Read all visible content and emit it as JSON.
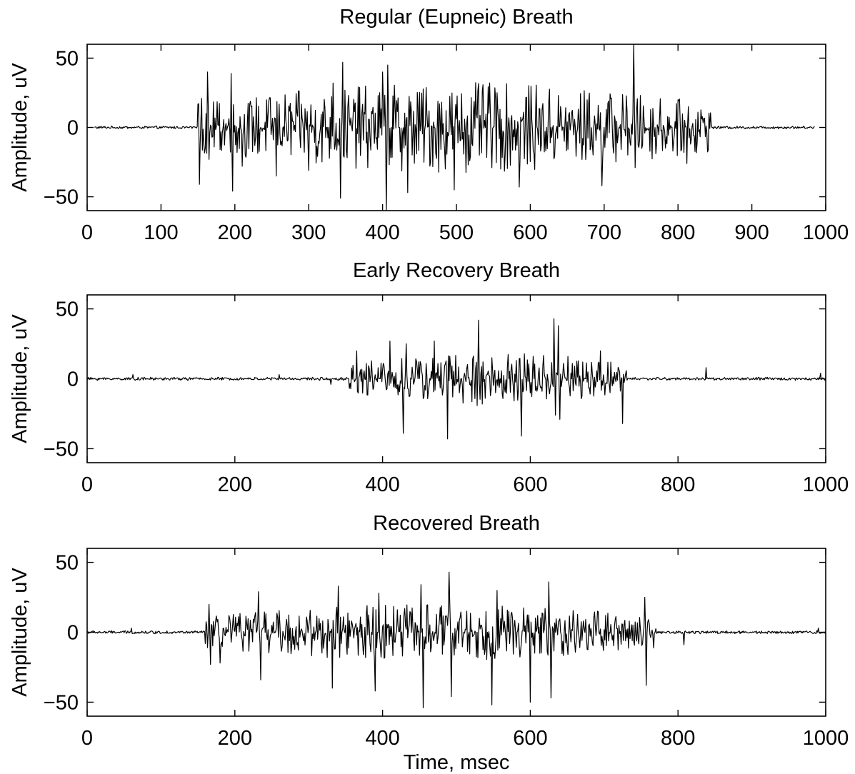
{
  "chart_data": [
    {
      "type": "line",
      "title": "Regular (Eupneic) Breath",
      "xlabel": "",
      "ylabel": "Amplitude, uV",
      "xlim": [
        0,
        1000
      ],
      "ylim": [
        -60,
        60
      ],
      "xticks": [
        0,
        100,
        200,
        300,
        400,
        500,
        600,
        700,
        800,
        900,
        1000
      ],
      "yticks": [
        -50,
        0,
        50
      ],
      "xtick_labels": [
        "0",
        "100",
        "200",
        "300",
        "400",
        "500",
        "600",
        "700",
        "800",
        "900",
        "1000"
      ],
      "ytick_labels": [
        "−50",
        "0",
        "50"
      ],
      "grid": false,
      "series": [
        {
          "x_range": [
            10,
            985
          ],
          "burst": [
            150,
            845
          ],
          "noise_amplitude": 0.8,
          "burst_amplitude": 25,
          "color": "#000000",
          "peaks": [
            {
              "x": 152,
              "y": -41
            },
            {
              "x": 155,
              "y": 21
            },
            {
              "x": 163,
              "y": 40
            },
            {
              "x": 165,
              "y": -23
            },
            {
              "x": 195,
              "y": 39
            },
            {
              "x": 197,
              "y": -46
            },
            {
              "x": 210,
              "y": -28
            },
            {
              "x": 256,
              "y": -35
            },
            {
              "x": 300,
              "y": -31
            },
            {
              "x": 333,
              "y": 32
            },
            {
              "x": 343,
              "y": -51
            },
            {
              "x": 346,
              "y": 47
            },
            {
              "x": 400,
              "y": 40
            },
            {
              "x": 405,
              "y": -60
            },
            {
              "x": 407,
              "y": 45
            },
            {
              "x": 434,
              "y": -47
            },
            {
              "x": 497,
              "y": -45
            },
            {
              "x": 585,
              "y": -43
            },
            {
              "x": 697,
              "y": -42
            },
            {
              "x": 740,
              "y": 60
            },
            {
              "x": 742,
              "y": -29
            },
            {
              "x": 812,
              "y": -26
            },
            {
              "x": 814,
              "y": 15
            }
          ]
        }
      ]
    },
    {
      "type": "line",
      "title": "Early Recovery Breath",
      "xlabel": "",
      "ylabel": "Amplitude, uV",
      "xlim": [
        0,
        1000
      ],
      "ylim": [
        -60,
        60
      ],
      "xticks": [
        0,
        200,
        400,
        600,
        800,
        1000
      ],
      "yticks": [
        -50,
        0,
        50
      ],
      "xtick_labels": [
        "0",
        "200",
        "400",
        "600",
        "800",
        "1000"
      ],
      "ytick_labels": [
        "−50",
        "0",
        "50"
      ],
      "grid": false,
      "series": [
        {
          "x_range": [
            0,
            1000
          ],
          "burst": [
            355,
            730
          ],
          "noise_amplitude": 0.9,
          "burst_amplitude": 15,
          "color": "#000000",
          "peaks": [
            {
              "x": 62,
              "y": 3
            },
            {
              "x": 260,
              "y": 3
            },
            {
              "x": 330,
              "y": -4
            },
            {
              "x": 365,
              "y": 20
            },
            {
              "x": 410,
              "y": 27
            },
            {
              "x": 428,
              "y": -39
            },
            {
              "x": 432,
              "y": 25
            },
            {
              "x": 470,
              "y": 27
            },
            {
              "x": 488,
              "y": -43
            },
            {
              "x": 530,
              "y": 42
            },
            {
              "x": 588,
              "y": -41
            },
            {
              "x": 632,
              "y": 43
            },
            {
              "x": 634,
              "y": -26
            },
            {
              "x": 638,
              "y": 38
            },
            {
              "x": 640,
              "y": -29
            },
            {
              "x": 695,
              "y": 20
            },
            {
              "x": 725,
              "y": -32
            },
            {
              "x": 838,
              "y": 8
            },
            {
              "x": 993,
              "y": 4
            }
          ]
        }
      ]
    },
    {
      "type": "line",
      "title": "Recovered Breath",
      "xlabel": "Time, msec",
      "ylabel": "Amplitude, uV",
      "xlim": [
        0,
        1000
      ],
      "ylim": [
        -60,
        60
      ],
      "xticks": [
        0,
        200,
        400,
        600,
        800,
        1000
      ],
      "yticks": [
        -50,
        0,
        50
      ],
      "xtick_labels": [
        "0",
        "200",
        "400",
        "600",
        "800",
        "1000"
      ],
      "ytick_labels": [
        "−50",
        "0",
        "50"
      ],
      "grid": false,
      "series": [
        {
          "x_range": [
            0,
            1000
          ],
          "burst": [
            160,
            770
          ],
          "noise_amplitude": 0.9,
          "burst_amplitude": 16,
          "color": "#000000",
          "peaks": [
            {
              "x": 60,
              "y": 3
            },
            {
              "x": 165,
              "y": 20
            },
            {
              "x": 167,
              "y": -23
            },
            {
              "x": 180,
              "y": -22
            },
            {
              "x": 232,
              "y": 29
            },
            {
              "x": 235,
              "y": -34
            },
            {
              "x": 332,
              "y": -40
            },
            {
              "x": 340,
              "y": 33
            },
            {
              "x": 390,
              "y": -42
            },
            {
              "x": 395,
              "y": 28
            },
            {
              "x": 452,
              "y": 34
            },
            {
              "x": 455,
              "y": -54
            },
            {
              "x": 490,
              "y": 43
            },
            {
              "x": 493,
              "y": -46
            },
            {
              "x": 548,
              "y": -52
            },
            {
              "x": 555,
              "y": 30
            },
            {
              "x": 600,
              "y": -50
            },
            {
              "x": 625,
              "y": 36
            },
            {
              "x": 628,
              "y": -47
            },
            {
              "x": 755,
              "y": 25
            },
            {
              "x": 757,
              "y": -38
            },
            {
              "x": 808,
              "y": -9
            },
            {
              "x": 990,
              "y": 3
            }
          ]
        }
      ]
    }
  ]
}
